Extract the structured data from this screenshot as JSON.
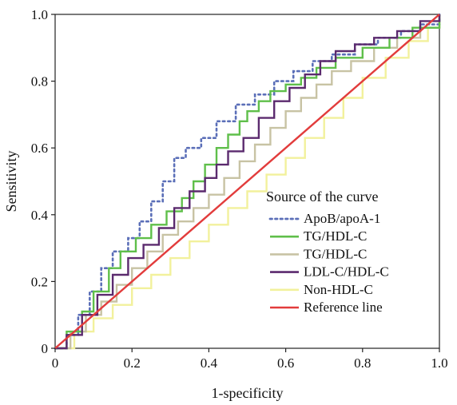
{
  "chart_data": {
    "type": "line",
    "title": "",
    "xlabel": "1-specificity",
    "ylabel": "Sensitivity",
    "xlim": [
      0,
      1
    ],
    "ylim": [
      0,
      1
    ],
    "grid": false,
    "legend": {
      "title": "Source of the curve",
      "position": "center-right"
    },
    "x_ticks": [
      {
        "value": 0,
        "label": "0"
      },
      {
        "value": 0.2,
        "label": "0.2"
      },
      {
        "value": 0.4,
        "label": "0.4"
      },
      {
        "value": 0.6,
        "label": "0.6"
      },
      {
        "value": 0.8,
        "label": "0.8"
      },
      {
        "value": 1.0,
        "label": "1.0"
      }
    ],
    "y_ticks": [
      {
        "value": 0,
        "label": "0"
      },
      {
        "value": 0.2,
        "label": "0.2"
      },
      {
        "value": 0.4,
        "label": "0.4"
      },
      {
        "value": 0.6,
        "label": "0.6"
      },
      {
        "value": 0.8,
        "label": "0.8"
      },
      {
        "value": 1.0,
        "label": "1.0"
      }
    ],
    "series": [
      {
        "name": "ApoB/apoA-1",
        "color": "#5b6fb8",
        "dash": "dotted",
        "points": [
          [
            0,
            0
          ],
          [
            0.03,
            0.04
          ],
          [
            0.06,
            0.1
          ],
          [
            0.09,
            0.17
          ],
          [
            0.12,
            0.24
          ],
          [
            0.15,
            0.29
          ],
          [
            0.19,
            0.33
          ],
          [
            0.22,
            0.38
          ],
          [
            0.25,
            0.44
          ],
          [
            0.28,
            0.5
          ],
          [
            0.31,
            0.57
          ],
          [
            0.34,
            0.6
          ],
          [
            0.38,
            0.63
          ],
          [
            0.42,
            0.68
          ],
          [
            0.47,
            0.73
          ],
          [
            0.52,
            0.76
          ],
          [
            0.57,
            0.8
          ],
          [
            0.62,
            0.83
          ],
          [
            0.67,
            0.86
          ],
          [
            0.72,
            0.88
          ],
          [
            0.78,
            0.91
          ],
          [
            0.84,
            0.93
          ],
          [
            0.9,
            0.95
          ],
          [
            0.95,
            0.97
          ],
          [
            1,
            1
          ]
        ]
      },
      {
        "name": "TG/HDL-C",
        "color": "#5fbf4a",
        "dash": "solid",
        "points": [
          [
            0,
            0
          ],
          [
            0.03,
            0.05
          ],
          [
            0.07,
            0.11
          ],
          [
            0.1,
            0.17
          ],
          [
            0.14,
            0.24
          ],
          [
            0.17,
            0.29
          ],
          [
            0.21,
            0.33
          ],
          [
            0.25,
            0.37
          ],
          [
            0.29,
            0.41
          ],
          [
            0.33,
            0.45
          ],
          [
            0.36,
            0.5
          ],
          [
            0.39,
            0.55
          ],
          [
            0.42,
            0.6
          ],
          [
            0.45,
            0.64
          ],
          [
            0.48,
            0.68
          ],
          [
            0.5,
            0.71
          ],
          [
            0.53,
            0.74
          ],
          [
            0.56,
            0.77
          ],
          [
            0.6,
            0.79
          ],
          [
            0.64,
            0.81
          ],
          [
            0.68,
            0.84
          ],
          [
            0.73,
            0.87
          ],
          [
            0.8,
            0.9
          ],
          [
            0.87,
            0.93
          ],
          [
            0.93,
            0.96
          ],
          [
            1,
            1
          ]
        ]
      },
      {
        "name": "TG/HDL-C",
        "color": "#c8c3a4",
        "dash": "solid",
        "points": [
          [
            0,
            0
          ],
          [
            0.04,
            0.05
          ],
          [
            0.08,
            0.1
          ],
          [
            0.12,
            0.14
          ],
          [
            0.16,
            0.19
          ],
          [
            0.2,
            0.24
          ],
          [
            0.24,
            0.29
          ],
          [
            0.28,
            0.34
          ],
          [
            0.32,
            0.38
          ],
          [
            0.36,
            0.42
          ],
          [
            0.4,
            0.46
          ],
          [
            0.44,
            0.51
          ],
          [
            0.48,
            0.56
          ],
          [
            0.52,
            0.61
          ],
          [
            0.56,
            0.66
          ],
          [
            0.6,
            0.71
          ],
          [
            0.64,
            0.75
          ],
          [
            0.68,
            0.79
          ],
          [
            0.72,
            0.83
          ],
          [
            0.77,
            0.86
          ],
          [
            0.83,
            0.9
          ],
          [
            0.89,
            0.93
          ],
          [
            0.95,
            0.96
          ],
          [
            1,
            1
          ]
        ]
      },
      {
        "name": "LDL-C/HDL-C",
        "color": "#5b2a6e",
        "dash": "solid",
        "points": [
          [
            0,
            0
          ],
          [
            0.03,
            0.04
          ],
          [
            0.07,
            0.1
          ],
          [
            0.11,
            0.16
          ],
          [
            0.15,
            0.22
          ],
          [
            0.19,
            0.27
          ],
          [
            0.23,
            0.31
          ],
          [
            0.27,
            0.36
          ],
          [
            0.31,
            0.42
          ],
          [
            0.35,
            0.47
          ],
          [
            0.39,
            0.51
          ],
          [
            0.42,
            0.55
          ],
          [
            0.45,
            0.59
          ],
          [
            0.49,
            0.63
          ],
          [
            0.53,
            0.69
          ],
          [
            0.57,
            0.74
          ],
          [
            0.61,
            0.78
          ],
          [
            0.65,
            0.82
          ],
          [
            0.69,
            0.86
          ],
          [
            0.73,
            0.89
          ],
          [
            0.78,
            0.91
          ],
          [
            0.83,
            0.93
          ],
          [
            0.89,
            0.95
          ],
          [
            0.95,
            0.98
          ],
          [
            1,
            1
          ]
        ]
      },
      {
        "name": "Non-HDL-C",
        "color": "#f2f19c",
        "dash": "solid",
        "points": [
          [
            0,
            0
          ],
          [
            0.05,
            0.05
          ],
          [
            0.1,
            0.09
          ],
          [
            0.15,
            0.13
          ],
          [
            0.2,
            0.18
          ],
          [
            0.25,
            0.22
          ],
          [
            0.3,
            0.27
          ],
          [
            0.35,
            0.32
          ],
          [
            0.4,
            0.37
          ],
          [
            0.45,
            0.42
          ],
          [
            0.5,
            0.47
          ],
          [
            0.55,
            0.52
          ],
          [
            0.6,
            0.57
          ],
          [
            0.65,
            0.63
          ],
          [
            0.7,
            0.69
          ],
          [
            0.75,
            0.75
          ],
          [
            0.8,
            0.81
          ],
          [
            0.86,
            0.87
          ],
          [
            0.92,
            0.92
          ],
          [
            0.97,
            0.96
          ],
          [
            1,
            1
          ]
        ]
      },
      {
        "name": "Reference line",
        "color": "#e23c3c",
        "dash": "solid",
        "points": [
          [
            0,
            0
          ],
          [
            1,
            1
          ]
        ]
      }
    ]
  }
}
